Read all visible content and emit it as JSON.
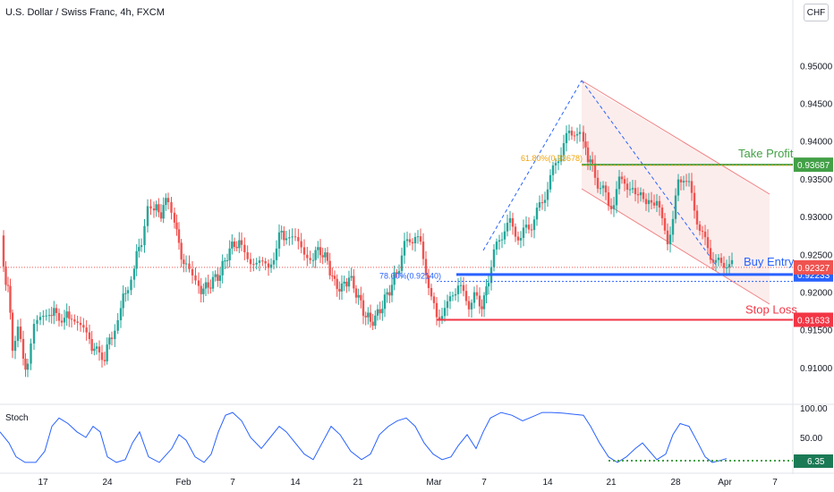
{
  "header": {
    "title": "U.S. Dollar / Swiss Franc, 4h, FXCM",
    "currency_badge": "CHF",
    "stoch_label": "Stoch"
  },
  "colors": {
    "up": "#26a69a",
    "down": "#ef5350",
    "take_profit": "#43a047",
    "buy_entry": "#2962ff",
    "stop_loss": "#f23645",
    "channel": "#f7a5a5",
    "fib": "#f0a30a",
    "stoch_line": "#2962ff",
    "dotted_blue": "#2962ff"
  },
  "chart_data": {
    "type": "candlestick",
    "price_axis": {
      "min": 0.9075,
      "max": 0.9575,
      "ticks": [
        0.91,
        0.915,
        0.92,
        0.925,
        0.93,
        0.935,
        0.94,
        0.945,
        0.95
      ],
      "tick_labels": [
        "0.91000",
        "0.91500",
        "0.92000",
        "0.92500",
        "0.93000",
        "0.93500",
        "0.94000",
        "0.94500",
        "0.95000"
      ]
    },
    "time_axis": {
      "labels": [
        "17",
        "24",
        "Feb",
        "7",
        "14",
        "21",
        "Mar",
        "7",
        "14",
        "21",
        "28",
        "Apr",
        "7"
      ]
    },
    "price_path": [
      [
        0,
        0.9275
      ],
      [
        4,
        0.923
      ],
      [
        9,
        0.9205
      ],
      [
        14,
        0.913
      ],
      [
        20,
        0.915
      ],
      [
        26,
        0.911
      ],
      [
        31,
        0.91
      ],
      [
        38,
        0.915
      ],
      [
        45,
        0.916
      ],
      [
        55,
        0.9175
      ],
      [
        63,
        0.917
      ],
      [
        72,
        0.9165
      ],
      [
        80,
        0.917
      ],
      [
        90,
        0.915
      ],
      [
        100,
        0.9135
      ],
      [
        108,
        0.912
      ],
      [
        117,
        0.9115
      ],
      [
        125,
        0.9145
      ],
      [
        135,
        0.918
      ],
      [
        143,
        0.921
      ],
      [
        150,
        0.9235
      ],
      [
        158,
        0.927
      ],
      [
        165,
        0.932
      ],
      [
        172,
        0.931
      ],
      [
        180,
        0.9305
      ],
      [
        188,
        0.9325
      ],
      [
        195,
        0.93
      ],
      [
        200,
        0.926
      ],
      [
        208,
        0.923
      ],
      [
        215,
        0.9215
      ],
      [
        222,
        0.9205
      ],
      [
        230,
        0.9205
      ],
      [
        238,
        0.9215
      ],
      [
        246,
        0.9225
      ],
      [
        254,
        0.925
      ],
      [
        262,
        0.9265
      ],
      [
        270,
        0.926
      ],
      [
        280,
        0.9245
      ],
      [
        290,
        0.924
      ],
      [
        300,
        0.9225
      ],
      [
        306,
        0.925
      ],
      [
        312,
        0.9275
      ],
      [
        320,
        0.9275
      ],
      [
        330,
        0.9265
      ],
      [
        340,
        0.925
      ],
      [
        350,
        0.925
      ],
      [
        358,
        0.9255
      ],
      [
        366,
        0.924
      ],
      [
        374,
        0.921
      ],
      [
        382,
        0.9205
      ],
      [
        390,
        0.922
      ],
      [
        398,
        0.92
      ],
      [
        406,
        0.9175
      ],
      [
        414,
        0.916
      ],
      [
        422,
        0.917
      ],
      [
        430,
        0.919
      ],
      [
        438,
        0.921
      ],
      [
        446,
        0.9235
      ],
      [
        452,
        0.926
      ],
      [
        458,
        0.927
      ],
      [
        464,
        0.9275
      ],
      [
        470,
        0.926
      ],
      [
        476,
        0.923
      ],
      [
        482,
        0.919
      ],
      [
        488,
        0.9165
      ],
      [
        494,
        0.9175
      ],
      [
        500,
        0.918
      ],
      [
        506,
        0.92
      ],
      [
        512,
        0.921
      ],
      [
        518,
        0.9195
      ],
      [
        524,
        0.9185
      ],
      [
        530,
        0.9195
      ],
      [
        536,
        0.918
      ],
      [
        541,
        0.919
      ],
      [
        546,
        0.922
      ],
      [
        552,
        0.925
      ],
      [
        558,
        0.927
      ],
      [
        564,
        0.9285
      ],
      [
        570,
        0.929
      ],
      [
        576,
        0.928
      ],
      [
        582,
        0.927
      ],
      [
        588,
        0.9285
      ],
      [
        594,
        0.929
      ],
      [
        600,
        0.9305
      ],
      [
        606,
        0.932
      ],
      [
        612,
        0.934
      ],
      [
        618,
        0.936
      ],
      [
        624,
        0.938
      ],
      [
        630,
        0.9395
      ],
      [
        636,
        0.941
      ],
      [
        642,
        0.9415
      ],
      [
        648,
        0.9405
      ],
      [
        652,
        0.9395
      ],
      [
        657,
        0.938
      ],
      [
        662,
        0.9365
      ],
      [
        668,
        0.9345
      ],
      [
        674,
        0.9335
      ],
      [
        680,
        0.9315
      ],
      [
        686,
        0.932
      ],
      [
        692,
        0.9345
      ],
      [
        698,
        0.935
      ],
      [
        704,
        0.9335
      ],
      [
        710,
        0.9325
      ],
      [
        716,
        0.934
      ],
      [
        722,
        0.931
      ],
      [
        728,
        0.932
      ],
      [
        734,
        0.9325
      ],
      [
        740,
        0.929
      ],
      [
        746,
        0.927
      ],
      [
        752,
        0.9295
      ],
      [
        758,
        0.9345
      ],
      [
        764,
        0.9355
      ],
      [
        770,
        0.934
      ],
      [
        776,
        0.931
      ],
      [
        782,
        0.9285
      ],
      [
        788,
        0.9265
      ],
      [
        794,
        0.925
      ],
      [
        800,
        0.924
      ],
      [
        806,
        0.9235
      ],
      [
        812,
        0.924
      ],
      [
        818,
        0.9235
      ]
    ],
    "levels": {
      "take_profit": {
        "label": "Take Profit",
        "value": 0.93687,
        "value_label": "0.93687"
      },
      "buy_entry": {
        "label": "Buy Entry",
        "value": 0.92233,
        "value_label": "0.92233"
      },
      "stop_loss": {
        "label": "Stop Loss",
        "value": 0.91633,
        "value_label": "0.91633"
      },
      "last_price": {
        "value": 0.92327,
        "value_label": "0.92327"
      }
    },
    "fibs": {
      "fib_618": {
        "label": "61.80%(0.93678)",
        "value": 0.93678
      },
      "fib_786": {
        "label": "78.60%(0.92140)",
        "value": 0.9214
      }
    },
    "stochastic": {
      "axis_ticks": [
        "100.00",
        "50.00"
      ],
      "value_label": "6.35",
      "path": [
        [
          0,
          60
        ],
        [
          10,
          40
        ],
        [
          18,
          15
        ],
        [
          28,
          5
        ],
        [
          40,
          5
        ],
        [
          50,
          25
        ],
        [
          58,
          70
        ],
        [
          66,
          85
        ],
        [
          76,
          75
        ],
        [
          86,
          60
        ],
        [
          96,
          50
        ],
        [
          104,
          70
        ],
        [
          112,
          60
        ],
        [
          120,
          15
        ],
        [
          130,
          5
        ],
        [
          140,
          10
        ],
        [
          148,
          40
        ],
        [
          156,
          60
        ],
        [
          166,
          15
        ],
        [
          178,
          5
        ],
        [
          192,
          30
        ],
        [
          200,
          55
        ],
        [
          208,
          45
        ],
        [
          218,
          15
        ],
        [
          228,
          5
        ],
        [
          236,
          20
        ],
        [
          244,
          60
        ],
        [
          252,
          90
        ],
        [
          260,
          95
        ],
        [
          270,
          80
        ],
        [
          280,
          50
        ],
        [
          292,
          30
        ],
        [
          302,
          50
        ],
        [
          312,
          70
        ],
        [
          320,
          60
        ],
        [
          330,
          40
        ],
        [
          340,
          20
        ],
        [
          350,
          10
        ],
        [
          360,
          40
        ],
        [
          370,
          70
        ],
        [
          380,
          55
        ],
        [
          392,
          25
        ],
        [
          404,
          10
        ],
        [
          414,
          20
        ],
        [
          424,
          55
        ],
        [
          434,
          70
        ],
        [
          444,
          80
        ],
        [
          454,
          85
        ],
        [
          464,
          70
        ],
        [
          474,
          40
        ],
        [
          484,
          20
        ],
        [
          494,
          10
        ],
        [
          504,
          15
        ],
        [
          512,
          35
        ],
        [
          522,
          55
        ],
        [
          532,
          30
        ],
        [
          540,
          60
        ],
        [
          548,
          85
        ],
        [
          560,
          95
        ],
        [
          572,
          90
        ],
        [
          584,
          80
        ],
        [
          596,
          88
        ],
        [
          606,
          95
        ],
        [
          616,
          95
        ],
        [
          628,
          94
        ],
        [
          640,
          92
        ],
        [
          652,
          90
        ],
        [
          660,
          70
        ],
        [
          670,
          40
        ],
        [
          680,
          15
        ],
        [
          690,
          5
        ],
        [
          700,
          15
        ],
        [
          710,
          30
        ],
        [
          718,
          40
        ],
        [
          726,
          25
        ],
        [
          734,
          10
        ],
        [
          744,
          20
        ],
        [
          752,
          55
        ],
        [
          760,
          75
        ],
        [
          770,
          70
        ],
        [
          780,
          40
        ],
        [
          788,
          15
        ],
        [
          796,
          5
        ],
        [
          804,
          8
        ],
        [
          812,
          12
        ]
      ]
    }
  }
}
